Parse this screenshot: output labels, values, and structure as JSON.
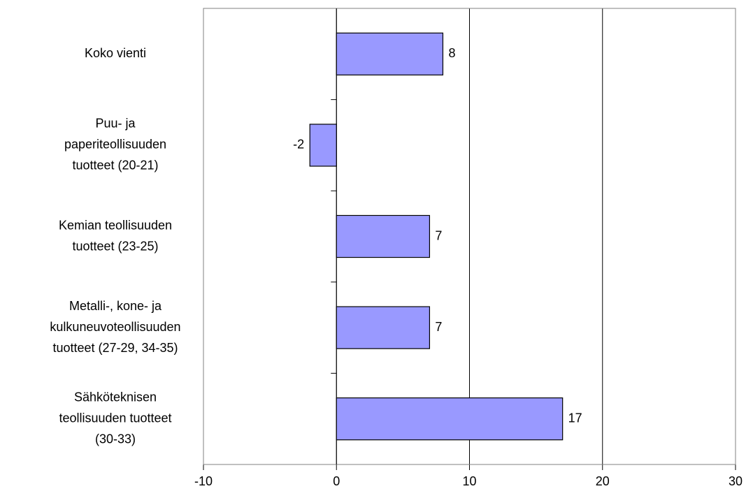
{
  "chart_data": {
    "type": "hbar",
    "categories": [
      [
        "Koko vienti"
      ],
      [
        "Puu- ja",
        "paperiteollisuuden",
        "tuotteet (20-21)"
      ],
      [
        "Kemian teollisuuden",
        "tuotteet (23-25)"
      ],
      [
        "Metalli-, kone- ja",
        "kulkuneuvoteollisuuden",
        "tuotteet (27-29, 34-35)"
      ],
      [
        "Sähköteknisen",
        "teollisuuden tuotteet",
        "(30-33)"
      ]
    ],
    "values": [
      8,
      -2,
      7,
      7,
      17
    ],
    "color": "#9999ff",
    "xlim": [
      -10,
      30
    ],
    "xticks": [
      -10,
      0,
      10,
      20,
      30
    ],
    "grid": true
  }
}
